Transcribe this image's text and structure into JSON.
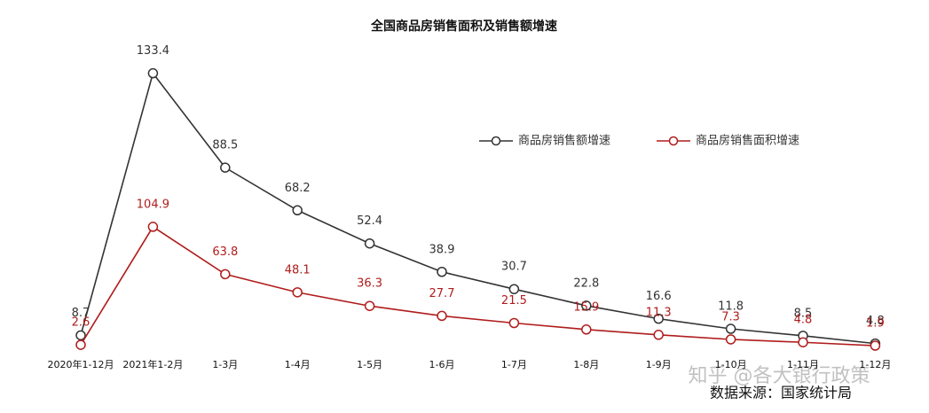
{
  "chart_data": {
    "type": "line",
    "title": "全国商品房销售面积及销售额增速",
    "categories": [
      "2020年1-12月",
      "2021年1-2月",
      "1-3月",
      "1-4月",
      "1-5月",
      "1-6月",
      "1-7月",
      "1-8月",
      "1-9月",
      "1-10月",
      "1-11月",
      "1-12月"
    ],
    "series": [
      {
        "name": "商品房销售额增速",
        "color": "#333333",
        "values": [
          8.7,
          133.4,
          88.5,
          68.2,
          52.4,
          38.9,
          30.7,
          22.8,
          16.6,
          11.8,
          8.5,
          4.8
        ]
      },
      {
        "name": "商品房销售面积增速",
        "color": "#b01c1c",
        "axis": "y2",
        "values": [
          2.6,
          104.9,
          63.8,
          48.1,
          36.3,
          27.7,
          21.5,
          15.9,
          11.3,
          7.3,
          4.8,
          1.9
        ]
      }
    ],
    "ylim": [
      0,
      140
    ],
    "y2lim": [
      -5,
      250
    ],
    "grid": false,
    "legend": "top-right",
    "source": "数据来源：国家统计局",
    "watermark": "知乎 @各大银行政策"
  }
}
